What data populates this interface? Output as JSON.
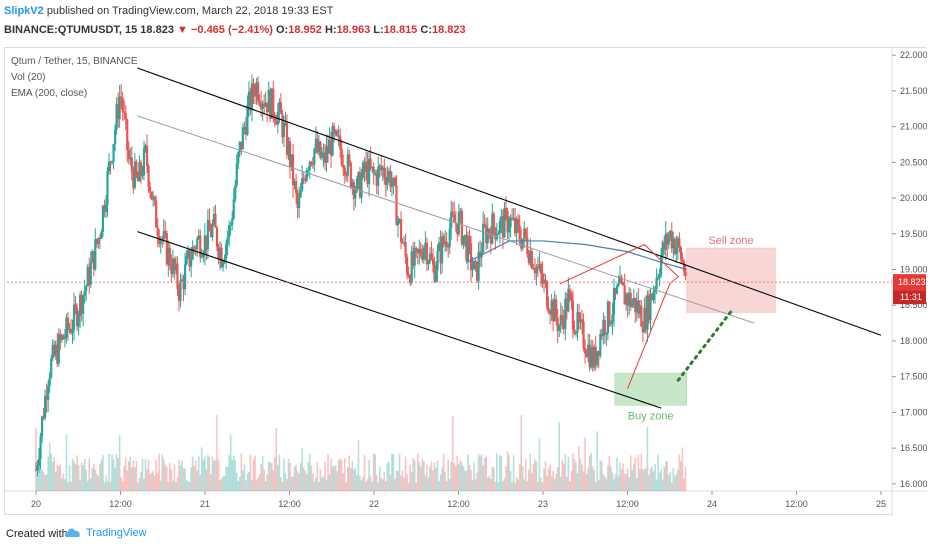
{
  "header": {
    "author": "SlipkV2",
    "published_text": "published on TradingView.com, March 22, 2018 19:33 EST",
    "symbol": "BINANCE:QTUMUSDT, 15",
    "last": "18.823",
    "change": "−0.465 (−2.41%)",
    "open_label": "O:",
    "open": "18.952",
    "high_label": "H:",
    "high": "18.963",
    "low_label": "L:",
    "low": "18.815",
    "close_label": "C:",
    "close": "18.823"
  },
  "legend": {
    "title": "Qtum / Tether, 15, BINANCE",
    "vol": "Vol (20)",
    "ema": "EMA (200, close)"
  },
  "footer": {
    "created": "Created with",
    "brand": "TradingView"
  },
  "colors": {
    "up": "#26a69a",
    "down": "#ef5350",
    "ema": "#4a7fb0",
    "channel": "#000000",
    "sell_zone": "#f4b6b6",
    "buy_zone": "#a5d6a7",
    "price_line": "#ef5350",
    "price_tag": "#e53935"
  },
  "chart_data": {
    "type": "candlestick",
    "title": "Qtum / Tether, 15, BINANCE",
    "x_tick_labels": [
      "20",
      "12:00",
      "21",
      "12:00",
      "22",
      "12:00",
      "23",
      "12:00",
      "24",
      "12:00",
      "25"
    ],
    "y_tick_labels": [
      "22.000",
      "21.500",
      "21.000",
      "20.500",
      "20.000",
      "19.500",
      "19.000",
      "18.500",
      "18.000",
      "17.500",
      "17.000",
      "16.500",
      "16.000"
    ],
    "ylim": [
      15.9,
      22.1
    ],
    "current_price": "18.823",
    "time_left": "11:31",
    "price_path": [
      [
        0.0,
        16.2
      ],
      [
        0.15,
        17.6
      ],
      [
        0.3,
        18.0
      ],
      [
        0.45,
        18.3
      ],
      [
        0.6,
        18.8
      ],
      [
        0.75,
        19.5
      ],
      [
        0.9,
        20.7
      ],
      [
        1.0,
        21.5
      ],
      [
        1.1,
        20.5
      ],
      [
        1.2,
        20.2
      ],
      [
        1.3,
        20.6
      ],
      [
        1.4,
        19.8
      ],
      [
        1.5,
        19.4
      ],
      [
        1.6,
        19.1
      ],
      [
        1.7,
        18.7
      ],
      [
        1.8,
        19.1
      ],
      [
        1.9,
        19.4
      ],
      [
        2.0,
        19.4
      ],
      [
        2.1,
        19.6
      ],
      [
        2.2,
        19.2
      ],
      [
        2.3,
        19.6
      ],
      [
        2.4,
        20.6
      ],
      [
        2.5,
        21.2
      ],
      [
        2.6,
        21.6
      ],
      [
        2.7,
        21.4
      ],
      [
        2.8,
        21.3
      ],
      [
        2.9,
        21.1
      ],
      [
        3.0,
        20.6
      ],
      [
        3.1,
        19.8
      ],
      [
        3.2,
        20.5
      ],
      [
        3.3,
        20.7
      ],
      [
        3.4,
        20.5
      ],
      [
        3.5,
        20.8
      ],
      [
        3.6,
        20.7
      ],
      [
        3.7,
        20.4
      ],
      [
        3.8,
        20.1
      ],
      [
        3.9,
        20.4
      ],
      [
        4.0,
        20.3
      ],
      [
        4.1,
        20.4
      ],
      [
        4.2,
        20.3
      ],
      [
        4.3,
        19.6
      ],
      [
        4.4,
        19.0
      ],
      [
        4.5,
        19.1
      ],
      [
        4.6,
        19.4
      ],
      [
        4.7,
        19.0
      ],
      [
        4.8,
        19.3
      ],
      [
        4.9,
        19.6
      ],
      [
        5.0,
        19.7
      ],
      [
        5.1,
        19.3
      ],
      [
        5.2,
        18.9
      ],
      [
        5.3,
        19.5
      ],
      [
        5.4,
        19.6
      ],
      [
        5.5,
        19.6
      ],
      [
        5.6,
        19.7
      ],
      [
        5.7,
        19.5
      ],
      [
        5.8,
        19.4
      ],
      [
        5.9,
        19.1
      ],
      [
        6.0,
        18.8
      ],
      [
        6.1,
        18.5
      ],
      [
        6.2,
        18.2
      ],
      [
        6.3,
        18.6
      ],
      [
        6.4,
        18.2
      ],
      [
        6.5,
        18.0
      ],
      [
        6.6,
        17.7
      ],
      [
        6.7,
        18.2
      ],
      [
        6.8,
        18.4
      ],
      [
        6.9,
        18.7
      ],
      [
        7.0,
        18.6
      ],
      [
        7.1,
        18.5
      ],
      [
        7.2,
        18.3
      ],
      [
        7.3,
        18.7
      ],
      [
        7.4,
        19.2
      ],
      [
        7.5,
        19.5
      ],
      [
        7.6,
        19.3
      ],
      [
        7.7,
        18.9
      ]
    ],
    "ema_path": [
      [
        5.1,
        19.1
      ],
      [
        5.6,
        19.4
      ],
      [
        6.0,
        19.4
      ],
      [
        6.5,
        19.35
      ],
      [
        7.0,
        19.25
      ],
      [
        7.4,
        19.1
      ],
      [
        7.7,
        19.0
      ]
    ],
    "channel_upper": [
      [
        1.2,
        21.82
      ],
      [
        10.0,
        18.08
      ]
    ],
    "channel_lower": [
      [
        1.2,
        19.53
      ],
      [
        7.4,
        17.06
      ]
    ],
    "trend_line": [
      [
        1.2,
        21.15
      ],
      [
        8.5,
        18.25
      ]
    ],
    "projection": [
      [
        6.2,
        18.8
      ],
      [
        7.2,
        19.35
      ],
      [
        7.6,
        18.9
      ],
      [
        7.5,
        18.8
      ],
      [
        7.0,
        17.33
      ]
    ],
    "dotted_projection": [
      [
        7.6,
        17.45
      ],
      [
        8.25,
        18.45
      ]
    ],
    "sell_zone": {
      "label": "Sell zone",
      "x": [
        7.7,
        8.75
      ],
      "y": [
        18.4,
        19.3
      ]
    },
    "buy_zone": {
      "label": "Buy zone",
      "x": [
        6.85,
        7.7
      ],
      "y": [
        17.1,
        17.55
      ]
    }
  }
}
